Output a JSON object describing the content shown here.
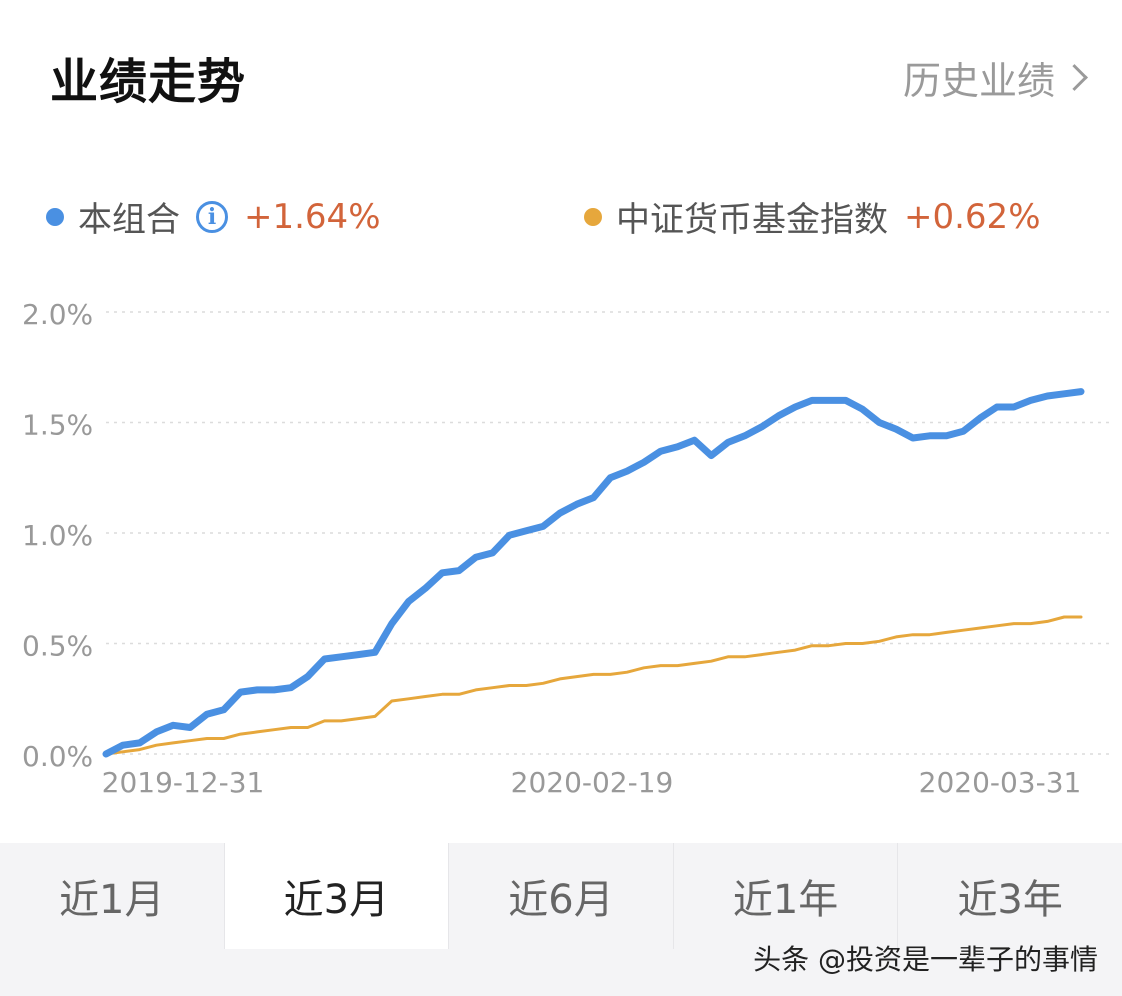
{
  "header": {
    "title": "业绩走势",
    "history_label": "历史业绩"
  },
  "legend": {
    "portfolio": {
      "label": "本组合",
      "value": "+1.64%",
      "color": "#4a90e2",
      "icon": "info-icon"
    },
    "index": {
      "label": "中证货币基金指数",
      "value": "+0.62%",
      "color": "#e6a73c"
    },
    "value_color": "#d2643a"
  },
  "chart_data": {
    "type": "line",
    "yticks": [
      "0.0%",
      "0.5%",
      "1.0%",
      "1.5%",
      "2.0%"
    ],
    "ylim": [
      0,
      2.0
    ],
    "x_labels": [
      "2019-12-31",
      "2020-02-19",
      "2020-03-31"
    ],
    "grid": true,
    "series": [
      {
        "name": "本组合",
        "color": "#4a90e2",
        "values": [
          0.0,
          0.04,
          0.05,
          0.1,
          0.13,
          0.12,
          0.18,
          0.2,
          0.28,
          0.29,
          0.29,
          0.3,
          0.35,
          0.43,
          0.44,
          0.45,
          0.46,
          0.59,
          0.69,
          0.75,
          0.82,
          0.83,
          0.89,
          0.91,
          0.99,
          1.01,
          1.03,
          1.09,
          1.13,
          1.16,
          1.25,
          1.28,
          1.32,
          1.37,
          1.39,
          1.42,
          1.35,
          1.41,
          1.44,
          1.48,
          1.53,
          1.57,
          1.6,
          1.6,
          1.6,
          1.56,
          1.5,
          1.47,
          1.43,
          1.44,
          1.44,
          1.46,
          1.52,
          1.57,
          1.57,
          1.6,
          1.62,
          1.63,
          1.64
        ]
      },
      {
        "name": "中证货币基金指数",
        "color": "#e6a73c",
        "values": [
          0.0,
          0.01,
          0.02,
          0.04,
          0.05,
          0.06,
          0.07,
          0.07,
          0.09,
          0.1,
          0.11,
          0.12,
          0.12,
          0.15,
          0.15,
          0.16,
          0.17,
          0.24,
          0.25,
          0.26,
          0.27,
          0.27,
          0.29,
          0.3,
          0.31,
          0.31,
          0.32,
          0.34,
          0.35,
          0.36,
          0.36,
          0.37,
          0.39,
          0.4,
          0.4,
          0.41,
          0.42,
          0.44,
          0.44,
          0.45,
          0.46,
          0.47,
          0.49,
          0.49,
          0.5,
          0.5,
          0.51,
          0.53,
          0.54,
          0.54,
          0.55,
          0.56,
          0.57,
          0.58,
          0.59,
          0.59,
          0.6,
          0.62,
          0.62
        ]
      }
    ]
  },
  "tabs": [
    {
      "label": "近1月",
      "active": false
    },
    {
      "label": "近3月",
      "active": true
    },
    {
      "label": "近6月",
      "active": false
    },
    {
      "label": "近1年",
      "active": false
    },
    {
      "label": "近3年",
      "active": false
    }
  ],
  "watermark": "头条 @投资是一辈子的事情"
}
